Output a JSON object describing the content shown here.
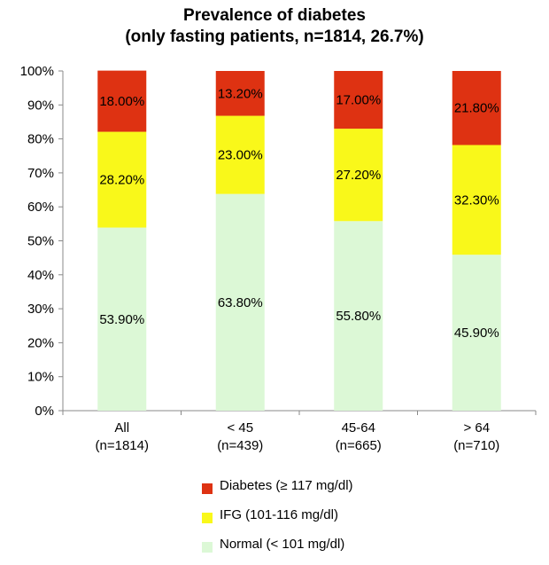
{
  "chart_data": {
    "type": "bar",
    "stacked": true,
    "title": [
      "Prevalence of diabetes",
      "(only fasting patients, n=1814, 26.7%)"
    ],
    "categories": [
      [
        "All",
        "(n=1814)"
      ],
      [
        "< 45",
        "(n=439)"
      ],
      [
        "45-64",
        "(n=665)"
      ],
      [
        "> 64",
        "(n=710)"
      ]
    ],
    "series": [
      {
        "name": "Normal (< 101 mg/dl)",
        "color": "#dcf8d6",
        "values": [
          53.9,
          63.8,
          55.8,
          45.9
        ],
        "labels": [
          "53.90%",
          "63.80%",
          "55.80%",
          "45.90%"
        ]
      },
      {
        "name": "IFG (101-116 mg/dl)",
        "color": "#f9f81a",
        "values": [
          28.2,
          23.0,
          27.2,
          32.3
        ],
        "labels": [
          "28.20%",
          "23.00%",
          "27.20%",
          "32.30%"
        ]
      },
      {
        "name": "Diabetes (≥ 117 mg/dl)",
        "color": "#de3212",
        "values": [
          18.0,
          13.2,
          17.0,
          21.8
        ],
        "labels": [
          "18.00%",
          "13.20%",
          "17.00%",
          "21.80%"
        ]
      }
    ],
    "ylim": [
      0,
      100
    ],
    "yticks": [
      "0%",
      "10%",
      "20%",
      "30%",
      "40%",
      "50%",
      "60%",
      "70%",
      "80%",
      "90%",
      "100%"
    ],
    "grid": false,
    "legend_position": "bottom",
    "legend_order": [
      2,
      1,
      0
    ]
  }
}
